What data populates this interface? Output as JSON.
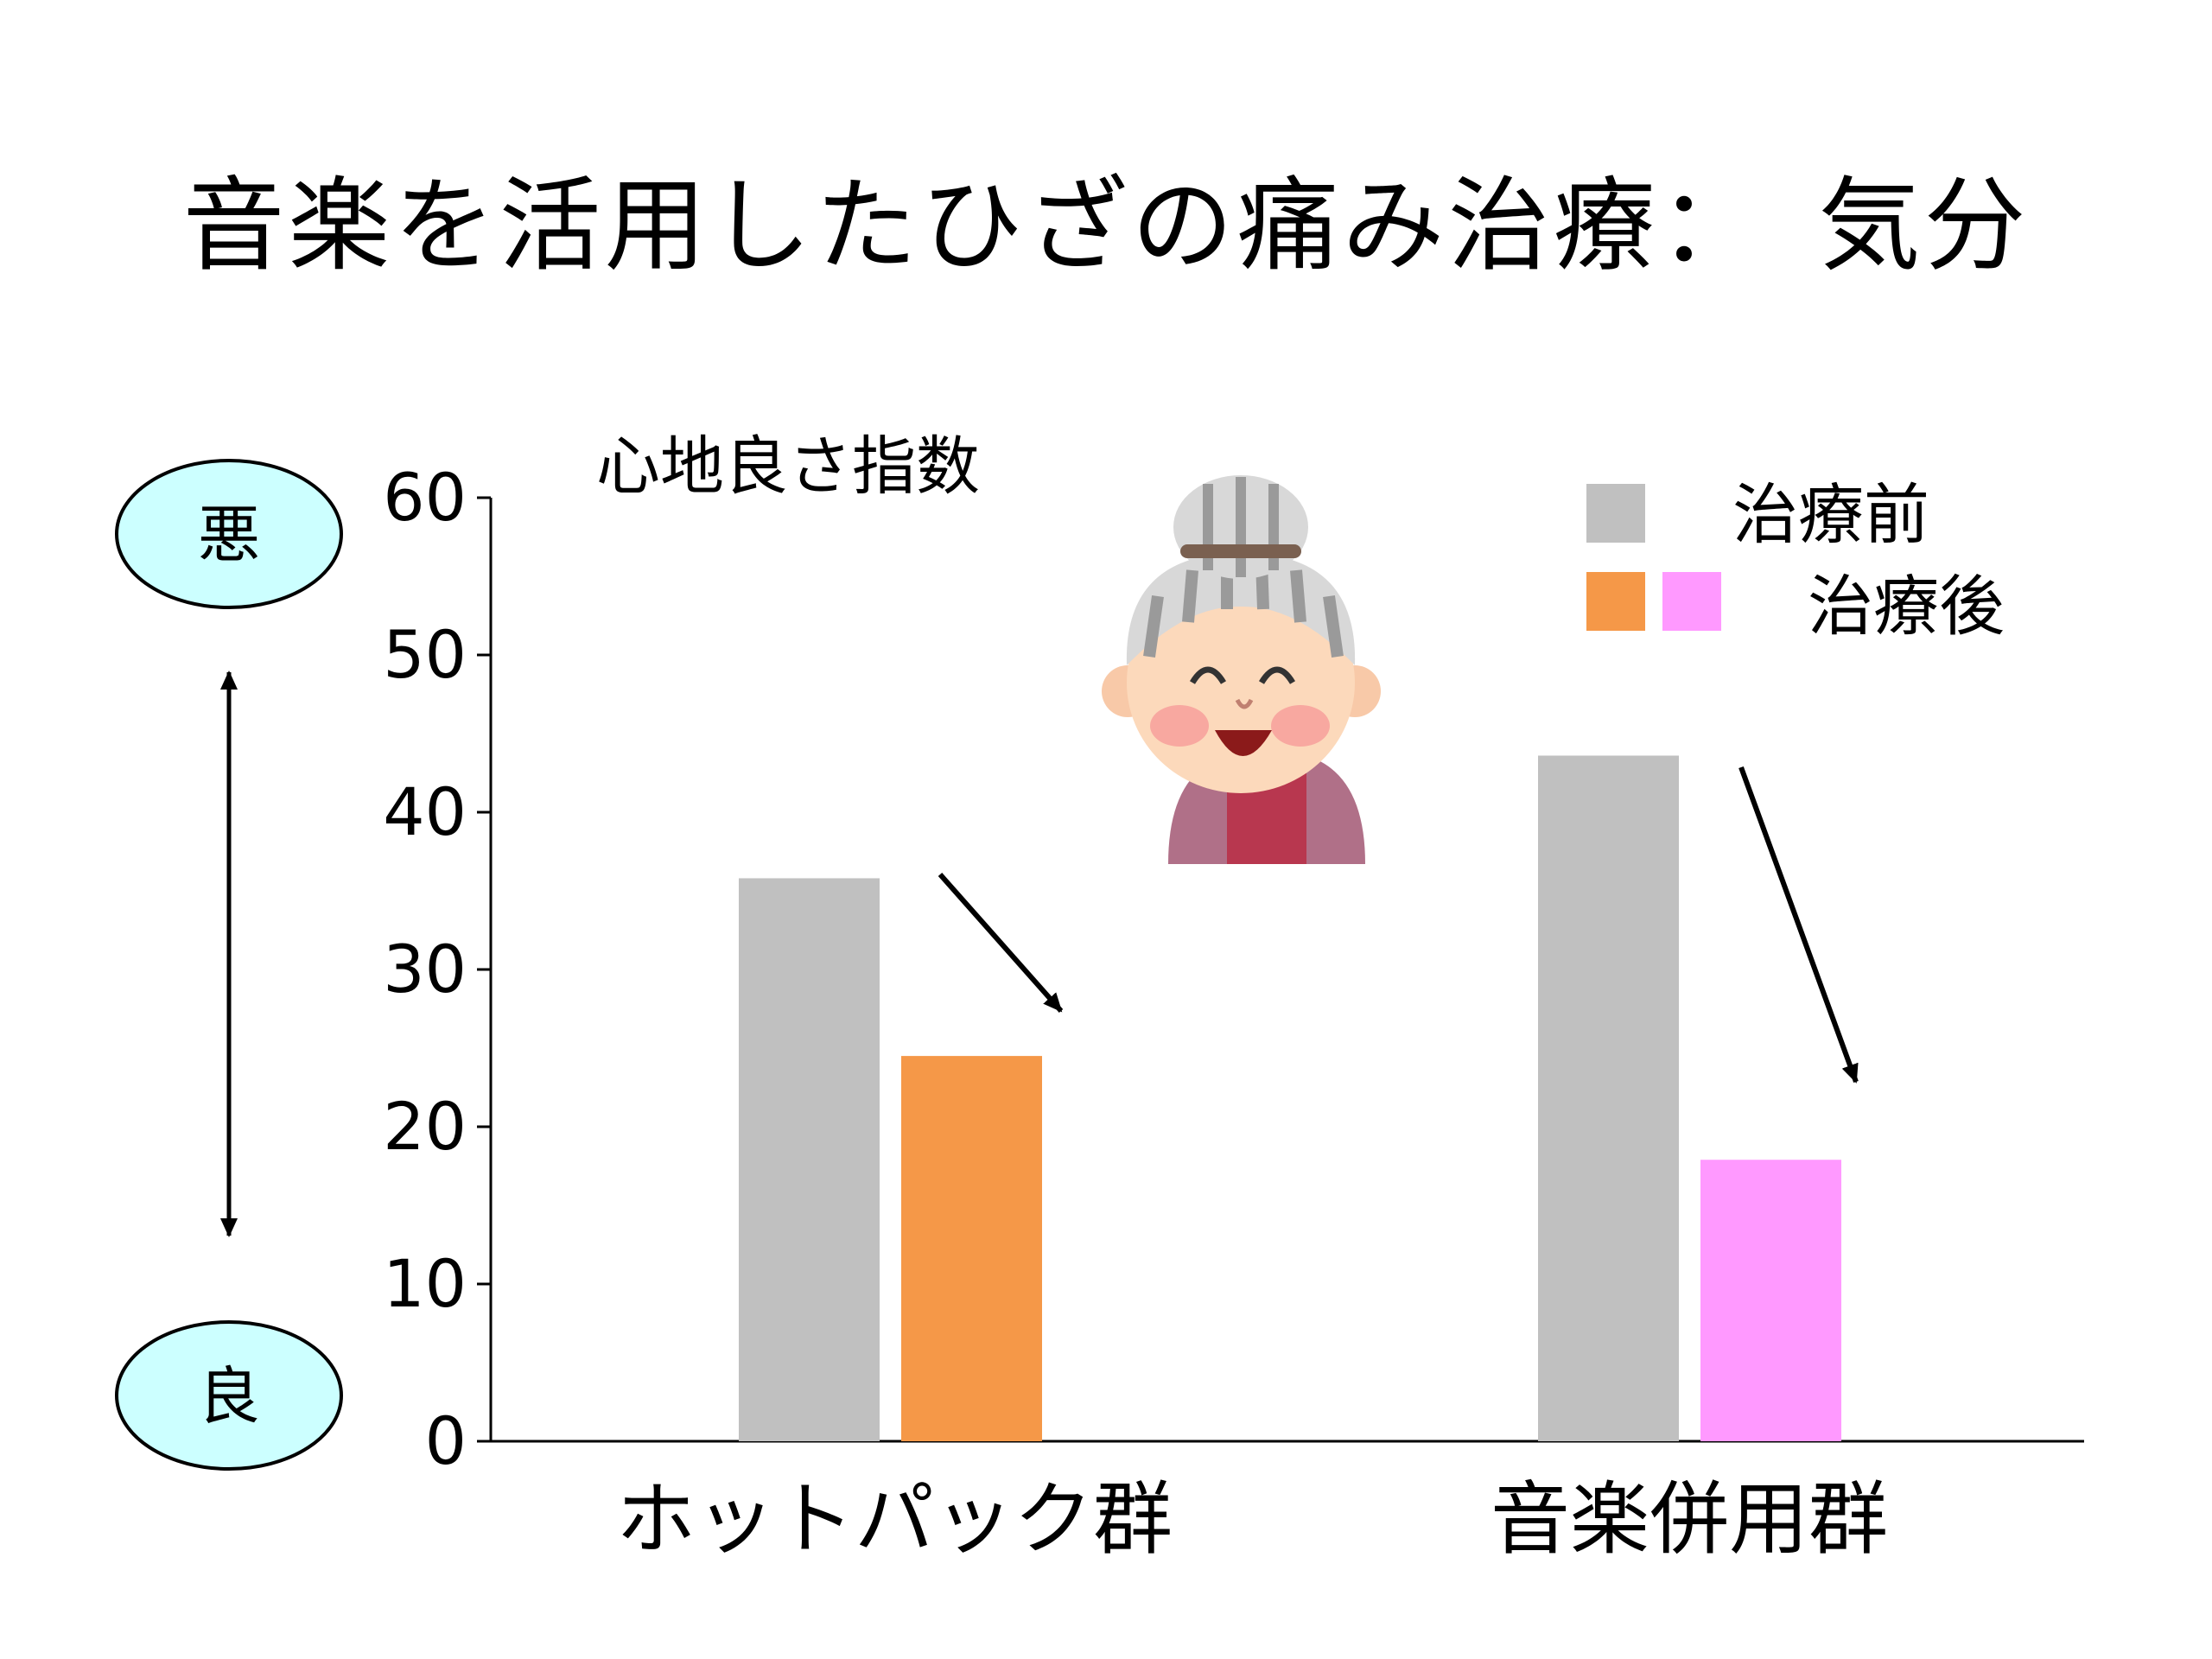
{
  "slide_title": "音楽を活用したひざの痛み治療：　気分",
  "scale_labels": {
    "top": "悪",
    "bottom": "良"
  },
  "colors": {
    "before": "#c0c0c0",
    "after_hotpack": "#f59848",
    "after_music": "#ff99ff",
    "pole_fill": "#ccffff"
  },
  "illustration": "smiling-grandmother-illustration",
  "chart_data": {
    "type": "bar",
    "ylabel": "心地良さ指数",
    "ylim": [
      0,
      60
    ],
    "yticks": [
      0,
      10,
      20,
      30,
      40,
      50,
      60
    ],
    "categories": [
      "ホットパック群",
      "音楽併用群"
    ],
    "series": [
      {
        "name": "治療前",
        "values": [
          35.8,
          43.6
        ]
      },
      {
        "name": "治療後",
        "values": [
          24.5,
          17.9
        ]
      }
    ],
    "legend_position": "top-right",
    "grid": false
  }
}
